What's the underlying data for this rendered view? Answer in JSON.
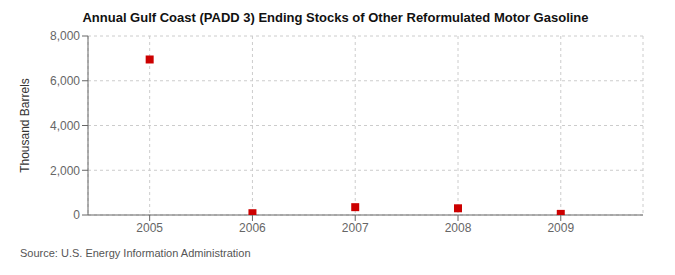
{
  "chart_data": {
    "type": "scatter",
    "title": "Annual Gulf Coast (PADD 3) Ending Stocks of Other Reformulated Motor Gasoline",
    "ylabel": "Thousand Barrels",
    "annotations": [
      "Source: U.S. Energy Information Administration"
    ],
    "x": [
      2005,
      2006,
      2007,
      2008,
      2009
    ],
    "values": [
      6950,
      80,
      350,
      300,
      50
    ],
    "color": "#cc0000",
    "marker": "square",
    "xlim": [
      2004.4,
      2009.8
    ],
    "xticks": [
      2005,
      2006,
      2007,
      2008,
      2009
    ],
    "ylim": [
      0,
      8000
    ],
    "yticks": [
      0,
      {
        "value": 2000,
        "label": "2,000"
      },
      {
        "value": 4000,
        "label": "4,000"
      },
      {
        "value": 6000,
        "label": "6,000"
      },
      {
        "value": 8000,
        "label": "8,000"
      }
    ],
    "grid": true
  }
}
